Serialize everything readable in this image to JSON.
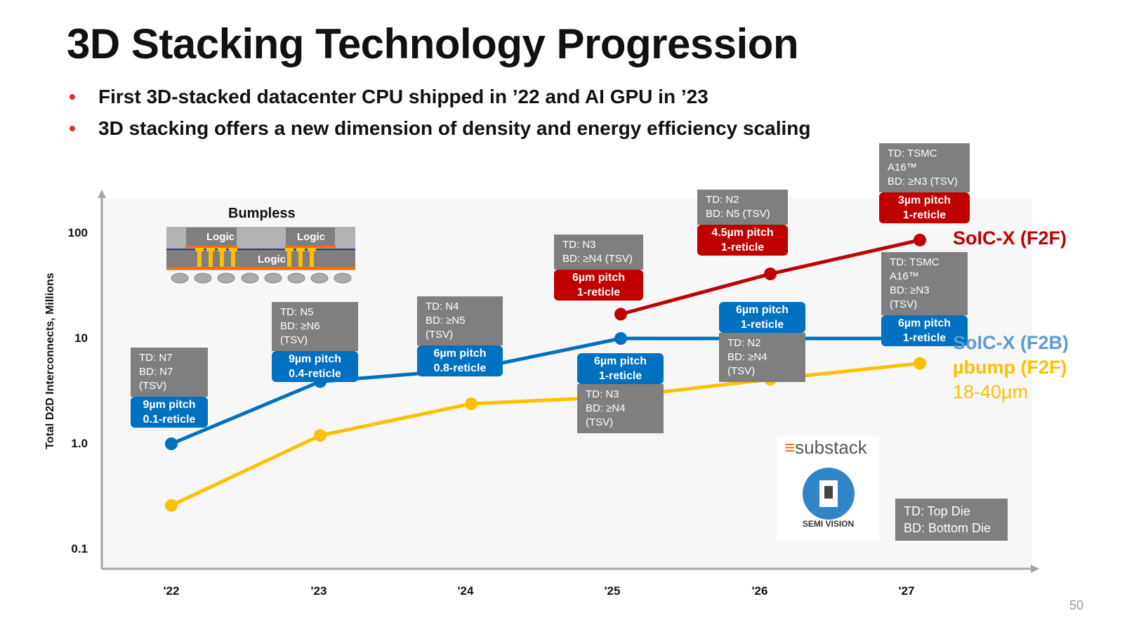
{
  "title": "3D Stacking Technology Progression",
  "bullets": [
    "First 3D-stacked datacenter CPU shipped in ’22 and AI GPU in ’23",
    "3D stacking offers a new dimension of density and energy efficiency scaling"
  ],
  "chart_data": {
    "type": "line",
    "title": "",
    "xlabel": "",
    "ylabel": "Total D2D Interconnects, Millions",
    "yscale": "log",
    "ylim": [
      0.1,
      100
    ],
    "yticks": [
      "0.1",
      "1.0",
      "10",
      "100"
    ],
    "categories": [
      "'22",
      "'23",
      "'24",
      "'25",
      "'26",
      "'27"
    ],
    "grid": false,
    "series": [
      {
        "name": "SoIC-X (F2F)",
        "color": "#c00000",
        "values": [
          null,
          null,
          null,
          17,
          41,
          86
        ]
      },
      {
        "name": "SoIC-X (F2B)",
        "color": "#0070c0",
        "label_color": "#5b9bd5",
        "values": [
          1.0,
          3.9,
          5.1,
          10,
          10,
          10
        ]
      },
      {
        "name": "µbump (F2F)",
        "sublabel": "18-40µm",
        "color": "#ffc000",
        "values": [
          0.26,
          1.2,
          2.4,
          2.8,
          4.1,
          5.8
        ]
      }
    ],
    "annotations": [
      {
        "id": "a22",
        "lines": [
          "TD: N7",
          "BD: N7",
          "(TSV)"
        ],
        "pitch": "9µm pitch",
        "reticle": "0.1-reticle",
        "color": "blue"
      },
      {
        "id": "a23",
        "lines": [
          "TD: N5",
          "BD: ≥N6 (TSV)"
        ],
        "pitch": "9µm pitch",
        "reticle": "0.4-reticle",
        "color": "blue"
      },
      {
        "id": "a24",
        "lines": [
          "TD: N4",
          "BD: ≥N5 (TSV)"
        ],
        "pitch": "6µm pitch",
        "reticle": "0.8-reticle",
        "color": "blue"
      },
      {
        "id": "a25r",
        "lines": [
          "TD: N3",
          "BD: ≥N4 (TSV)"
        ],
        "pitch": "6µm pitch",
        "reticle": "1-reticle",
        "color": "red"
      },
      {
        "id": "a25b",
        "lines": [
          "TD: N3",
          "BD: ≥N4 (TSV)"
        ],
        "pitch": "6µm pitch",
        "reticle": "1-reticle",
        "color": "blue"
      },
      {
        "id": "a26r",
        "lines": [
          "TD: N2",
          "BD: N5 (TSV)"
        ],
        "pitch": "4.5µm pitch",
        "reticle": "1-reticle",
        "color": "red"
      },
      {
        "id": "a26b",
        "lines": [
          "TD: N2",
          "BD: ≥N4 (TSV)"
        ],
        "pitch": "6µm pitch",
        "reticle": "1-reticle",
        "color": "blue"
      },
      {
        "id": "a27r",
        "lines": [
          "TD: TSMC",
          "A16™",
          "BD: ≥N3 (TSV)"
        ],
        "pitch": "3µm pitch",
        "reticle": "1-reticle",
        "color": "red"
      },
      {
        "id": "a27b",
        "lines": [
          "TD: TSMC",
          "A16™",
          "BD: ≥N3 (TSV)"
        ],
        "pitch": "6µm pitch",
        "reticle": "1-reticle",
        "color": "blue"
      }
    ]
  },
  "diagram": {
    "title": "Bumpless",
    "die_labels": [
      "Logic",
      "Logic",
      "Logic"
    ]
  },
  "legend_box": [
    "TD: Top Die",
    "BD: Bottom Die"
  ],
  "logo": {
    "brand": "substack",
    "name": "SEMI VISION"
  },
  "page_number": "50"
}
